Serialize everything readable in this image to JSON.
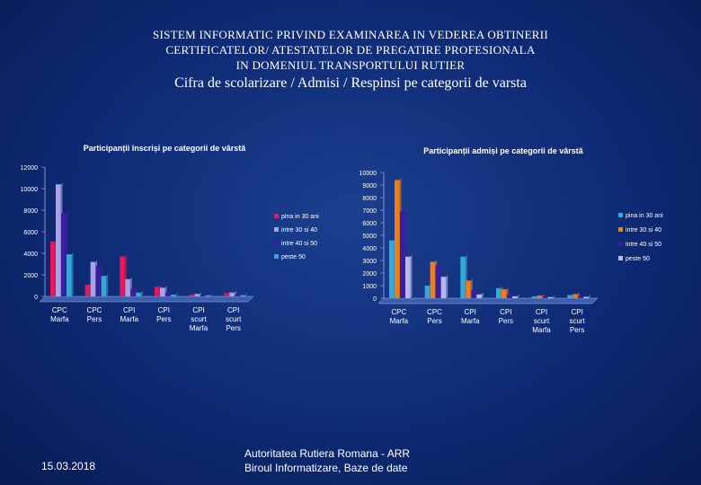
{
  "header": {
    "title_lines": [
      "SISTEM INFORMATIC PRIVIND EXAMINAREA IN VEDEREA OBTINERII",
      "CERTIFICATELOR/ ATESTATELOR DE PREGATIRE PROFESIONALA",
      "IN DOMENIUL TRANSPORTULUI RUTIER"
    ],
    "subtitle": "Cifra de scolarizare / Admisi / Respinsi pe categorii de varsta"
  },
  "footer": {
    "date": "15.03.2018",
    "org_line1": "Autoritatea Rutiera Romana - ARR",
    "org_line2": "Biroul Informatizare, Baze de date"
  },
  "colors": {
    "series": [
      "#e8175d",
      "#a8a2e6",
      "#3a1ea0",
      "#34a9d8"
    ],
    "series_chart2": [
      "#34a9d8",
      "#f07d16",
      "#3a1ea0",
      "#b8b8f0"
    ]
  },
  "chart_data": [
    {
      "type": "bar",
      "title": "Participanții înscriși pe categorii de vârstă",
      "categories": [
        [
          "CPC",
          "Marfa"
        ],
        [
          "CPC",
          "Pers"
        ],
        [
          "CPI",
          "Marfa"
        ],
        [
          "CPI",
          "Pers"
        ],
        [
          "CPI",
          "scurt",
          "Marfa"
        ],
        [
          "CPI",
          "scurt",
          "Pers"
        ]
      ],
      "series": [
        {
          "name": "pina in 30 ani",
          "values": [
            5100,
            1100,
            3700,
            900,
            180,
            300
          ]
        },
        {
          "name": "intre 30 si 40",
          "values": [
            10400,
            3200,
            1600,
            800,
            230,
            360
          ]
        },
        {
          "name": "intre 40 si 50",
          "values": [
            7700,
            2800,
            700,
            350,
            140,
            200
          ]
        },
        {
          "name": "peste 50",
          "values": [
            3900,
            1900,
            350,
            160,
            100,
            120
          ]
        }
      ],
      "yticks": [
        0,
        2000,
        4000,
        6000,
        8000,
        10000,
        12000
      ],
      "ylim": [
        0,
        12000
      ],
      "legend": "right"
    },
    {
      "type": "bar",
      "title": "Participanții admiși pe categorii de vârstă",
      "categories": [
        [
          "CPC",
          "Marfa"
        ],
        [
          "CPC",
          "Pers"
        ],
        [
          "CPI",
          "Marfa"
        ],
        [
          "CPI",
          "Pers"
        ],
        [
          "CPI",
          "scurt",
          "Marfa"
        ],
        [
          "CPI",
          "scurt",
          "Pers"
        ]
      ],
      "series": [
        {
          "name": "pina in 30 ani",
          "values": [
            4600,
            1000,
            3300,
            800,
            150,
            250
          ]
        },
        {
          "name": "intre 30 si 40",
          "values": [
            9400,
            2900,
            1400,
            700,
            200,
            320
          ]
        },
        {
          "name": "intre 40 si 50",
          "values": [
            6900,
            2600,
            650,
            300,
            120,
            180
          ]
        },
        {
          "name": "peste 50",
          "values": [
            3300,
            1700,
            300,
            150,
            90,
            110
          ]
        }
      ],
      "yticks": [
        0,
        1000,
        2000,
        3000,
        4000,
        5000,
        6000,
        7000,
        8000,
        9000,
        10000
      ],
      "ylim": [
        0,
        10000
      ],
      "legend": "right"
    }
  ]
}
